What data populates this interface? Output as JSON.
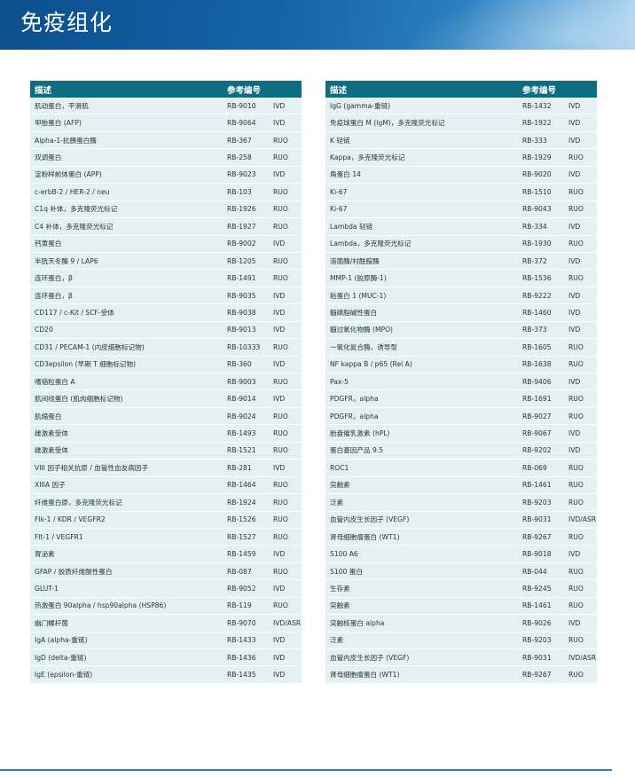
{
  "banner": {
    "title": "免疫组化"
  },
  "columns": {
    "desc": "描述",
    "ref": "参考编号"
  },
  "left_rows": [
    {
      "desc": "肌动蛋白，平滑肌",
      "ref": "RB-9010",
      "type": "IVD"
    },
    {
      "desc": "甲胎蛋白 (AFP)",
      "ref": "RB-9064",
      "type": "IVD"
    },
    {
      "desc": "Alpha-1-抗胰蛋白酶",
      "ref": "RB-367",
      "type": "RUO"
    },
    {
      "desc": "双调蛋白",
      "ref": "RB-258",
      "type": "RUO"
    },
    {
      "desc": "淀粉样前体蛋白 (APP)",
      "ref": "RB-9023",
      "type": "IVD"
    },
    {
      "desc": "c-erbB-2 / HER-2 / neu",
      "ref": "RB-103",
      "type": "RUO"
    },
    {
      "desc": "C1q 补体，多克隆荧光标记",
      "ref": "RB-1926",
      "type": "RUO"
    },
    {
      "desc": "C4 补体，多克隆荧光标记",
      "ref": "RB-1927",
      "type": "RUO"
    },
    {
      "desc": "钙黄蛋白",
      "ref": "RB-9002",
      "type": "IVD"
    },
    {
      "desc": "半胱天冬酶 9 / LAP6",
      "ref": "RB-1205",
      "type": "RUO"
    },
    {
      "desc": "连环蛋白，β",
      "ref": "RB-1491",
      "type": "RUO"
    },
    {
      "desc": "连环蛋白，β",
      "ref": "RB-9035",
      "type": "IVD"
    },
    {
      "desc": "CD117 / c-Kit / SCF-受体",
      "ref": "RB-9038",
      "type": "IVD"
    },
    {
      "desc": "CD20",
      "ref": "RB-9013",
      "type": "IVD"
    },
    {
      "desc": "CD31 / PECAM-1 (内皮细胞标记物)",
      "ref": "RB-10333",
      "type": "RUO"
    },
    {
      "desc": "CD3epsilon (早期 T 细胞标记物)",
      "ref": "RB-360",
      "type": "IVD"
    },
    {
      "desc": "嗜铬粒蛋白 A",
      "ref": "RB-9003",
      "type": "RUO"
    },
    {
      "desc": "肌间线蛋白 (肌肉细胞标记物)",
      "ref": "RB-9014",
      "type": "IVD"
    },
    {
      "desc": "肌缩蛋白",
      "ref": "RB-9024",
      "type": "RUO"
    },
    {
      "desc": "雌激素受体",
      "ref": "RB-1493",
      "type": "RUO"
    },
    {
      "desc": "雌激素受体",
      "ref": "RB-1521",
      "type": "RUO"
    },
    {
      "desc": "VIII 因子相关抗原 / 血管性血友病因子",
      "ref": "RB-281",
      "type": "IVD"
    },
    {
      "desc": "XIIIA 因子",
      "ref": "RB-1464",
      "type": "RUO"
    },
    {
      "desc": "纤维蛋白原，多克隆荧光标记",
      "ref": "RB-1924",
      "type": "RUO"
    },
    {
      "desc": "Flk-1 / KDR / VEGFR2",
      "ref": "RB-1526",
      "type": "RUO"
    },
    {
      "desc": "Flt-1 / VEGFR1",
      "ref": "RB-1527",
      "type": "RUO"
    },
    {
      "desc": "胃泌素",
      "ref": "RB-1459",
      "type": "IVD"
    },
    {
      "desc": "GFAP / 胶质纤维酸性蛋白",
      "ref": "RB-087",
      "type": "RUO"
    },
    {
      "desc": "GLUT-1",
      "ref": "RB-9052",
      "type": "IVD"
    },
    {
      "desc": "热激蛋白 90alpha / hsp90alpha (HSP86)",
      "ref": "RB-119",
      "type": "RUO"
    },
    {
      "desc": "幽门螺杆菌",
      "ref": "RB-9070",
      "type": "IVD/ASR"
    },
    {
      "desc": "IgA (alpha-重链)",
      "ref": "RB-1433",
      "type": "IVD"
    },
    {
      "desc": "IgD (delta-重链)",
      "ref": "RB-1436",
      "type": "IVD"
    },
    {
      "desc": "IgE (epsilon-重链)",
      "ref": "RB-1435",
      "type": "IVD"
    }
  ],
  "right_rows": [
    {
      "desc": "IgG (gamma-重链)",
      "ref": "RB-1432",
      "type": "IVD"
    },
    {
      "desc": "免疫球蛋白 M (IgM)，多克隆荧光标记",
      "ref": "RB-1922",
      "type": "IVD"
    },
    {
      "desc": "K 轻链",
      "ref": "RB-333",
      "type": "IVD"
    },
    {
      "desc": "Kappa，多克隆荧光标记",
      "ref": "RB-1929",
      "type": "RUO"
    },
    {
      "desc": "角蛋白 14",
      "ref": "RB-9020",
      "type": "IVD"
    },
    {
      "desc": "Ki-67",
      "ref": "RB-1510",
      "type": "RUO"
    },
    {
      "desc": "Ki-67",
      "ref": "RB-9043",
      "type": "RUO"
    },
    {
      "desc": "Lambda 轻链",
      "ref": "RB-334",
      "type": "IVD"
    },
    {
      "desc": "Lambda，多克隆荧光标记",
      "ref": "RB-1930",
      "type": "RUO"
    },
    {
      "desc": "溶菌酶/村酰胺酶",
      "ref": "RB-372",
      "type": "IVD"
    },
    {
      "desc": "MMP-1 (胶原酶-1)",
      "ref": "RB-1536",
      "type": "RUO"
    },
    {
      "desc": "粘蛋白 1 (MUC-1)",
      "ref": "RB-9222",
      "type": "IVD"
    },
    {
      "desc": "髓磷脂碱性蛋白",
      "ref": "RB-1460",
      "type": "IVD"
    },
    {
      "desc": "髓过氧化物酶 (MPO)",
      "ref": "RB-373",
      "type": "IVD"
    },
    {
      "desc": "一氧化氮合酶，诱导型",
      "ref": "RB-1605",
      "type": "RUO"
    },
    {
      "desc": "NF kappa B / p65 (Rel A)",
      "ref": "RB-1638",
      "type": "RUO"
    },
    {
      "desc": "Pax-5",
      "ref": "RB-9406",
      "type": "IVD"
    },
    {
      "desc": "PDGFR，alpha",
      "ref": "RB-1691",
      "type": "RUO"
    },
    {
      "desc": "PDGFR，alpha",
      "ref": "RB-9027",
      "type": "RUO"
    },
    {
      "desc": "胎盘催乳激素 (hPL)",
      "ref": "RB-9067",
      "type": "IVD"
    },
    {
      "desc": "蛋白基因产品 9.5",
      "ref": "RB-9202",
      "type": "IVD"
    },
    {
      "desc": "ROC1",
      "ref": "RB-069",
      "type": "RUO"
    },
    {
      "desc": "突触素",
      "ref": "RB-1461",
      "type": "RUO"
    },
    {
      "desc": "泛素",
      "ref": "RB-9203",
      "type": "RUO"
    },
    {
      "desc": "血管内皮生长因子 (VEGF)",
      "ref": "RB-9031",
      "type": "IVD/ASR"
    },
    {
      "desc": "肾母细胞瘤蛋白 (WT1)",
      "ref": "RB-9267",
      "type": "RUO"
    },
    {
      "desc": "S100 A6",
      "ref": "RB-9018",
      "type": "IVD"
    },
    {
      "desc": "S100 蛋白",
      "ref": "RB-044",
      "type": "RUO"
    },
    {
      "desc": "生存素",
      "ref": "RB-9245",
      "type": "RUO"
    },
    {
      "desc": "突触素",
      "ref": "RB-1461",
      "type": "RUO"
    },
    {
      "desc": "突触核蛋白 alpha",
      "ref": "RB-9026",
      "type": "IVD"
    },
    {
      "desc": "泛素",
      "ref": "RB-9203",
      "type": "RUO"
    },
    {
      "desc": "血管内皮生长因子 (VEGF)",
      "ref": "RB-9031",
      "type": "IVD/ASR"
    },
    {
      "desc": "肾母细胞瘤蛋白 (WT1)",
      "ref": "RB-9267",
      "type": "RUO"
    }
  ],
  "colors": {
    "header": "#0e6d80",
    "row": "#e3f1f2",
    "banner": "#1564a6"
  }
}
